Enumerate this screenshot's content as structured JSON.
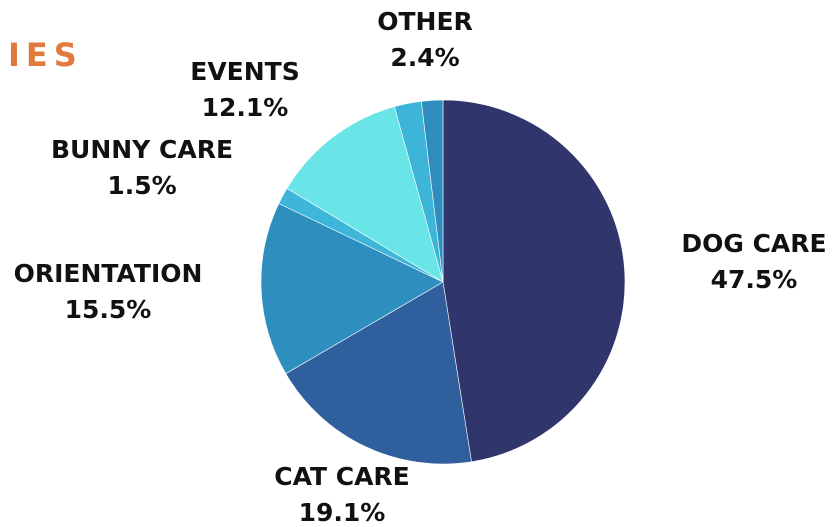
{
  "heading": "IES",
  "colors": {
    "heading": "#e07a3d",
    "label": "#111111"
  },
  "chart_data": {
    "type": "pie",
    "start": "12 o'clock",
    "direction": "clockwise",
    "slices": [
      {
        "label": "DOG CARE",
        "value": 47.5,
        "display": "47.5%",
        "color": "#30356b"
      },
      {
        "label": "CAT CARE",
        "value": 19.1,
        "display": "19.1%",
        "color": "#2f5f9c"
      },
      {
        "label": "ORIENTATION",
        "value": 15.5,
        "display": "15.5%",
        "color": "#2e8fbf"
      },
      {
        "label": "BUNNY CARE",
        "value": 1.5,
        "display": "1.5%",
        "color": "#3eb6da"
      },
      {
        "label": "EVENTS",
        "value": 12.1,
        "display": "12.1%",
        "color": "#69e5e8"
      },
      {
        "label": "OTHER",
        "value": 2.4,
        "display": "2.4%",
        "color": "#3db5d9"
      },
      {
        "label": "",
        "value": 1.9,
        "display": "",
        "color": "#2e8dbd"
      }
    ]
  }
}
